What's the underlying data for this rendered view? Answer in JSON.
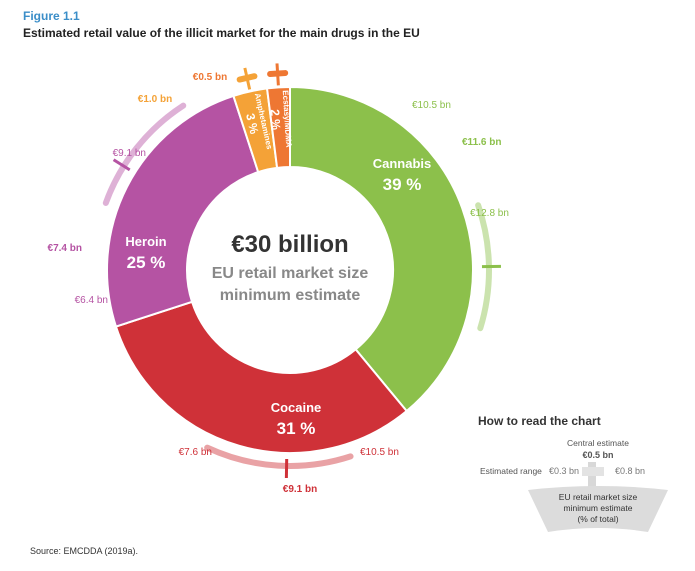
{
  "figure_label": "Figure 1.1",
  "title": "Estimated retail value of the illicit market for the main drugs in the EU",
  "source": "Source: EMCDDA (2019a).",
  "center": {
    "line1": "€30 billion",
    "line2": "EU retail market size",
    "line3": "minimum estimate"
  },
  "colors": {
    "cannabis": "#8cc04b",
    "cocaine": "#cf3138",
    "heroin": "#b553a3",
    "amphetamines": "#f4a237",
    "ecstasy": "#ee7733"
  },
  "how_to_read": {
    "title": "How to read the chart",
    "central_label": "Central estimate",
    "central_value": "€0.5 bn",
    "range_label": "Estimated range",
    "range_low": "€0.3 bn",
    "range_high": "€0.8 bn",
    "box_line1": "EU retail market size",
    "box_line2": "minimum estimate",
    "box_line3": "(% of total)"
  },
  "chart_data": {
    "type": "pie",
    "title": "Estimated retail value of the illicit market for the main drugs in the EU",
    "total_label": "€30 billion",
    "slices": [
      {
        "name": "Cannabis",
        "percent": 39,
        "percent_label": "39 %",
        "central": "€11.6 bn",
        "low": "€10.5 bn",
        "high": "€12.8 bn",
        "central_value": 11.6,
        "low_value": 10.5,
        "high_value": 12.8
      },
      {
        "name": "Cocaine",
        "percent": 31,
        "percent_label": "31 %",
        "central": "€9.1 bn",
        "low": "€7.6 bn",
        "high": "€10.5 bn",
        "central_value": 9.1,
        "low_value": 7.6,
        "high_value": 10.5
      },
      {
        "name": "Heroin",
        "percent": 25,
        "percent_label": "25 %",
        "central": "€7.4 bn",
        "low": "€6.4 bn",
        "high": "€9.1 bn",
        "central_value": 7.4,
        "low_value": 6.4,
        "high_value": 9.1
      },
      {
        "name": "Amphetamines",
        "percent": 3,
        "percent_label": "3 %",
        "central": "€1.0 bn",
        "central_value": 1.0
      },
      {
        "name": "Ecstasy/MDMA",
        "percent": 2,
        "percent_label": "2 %",
        "central": "€0.5 bn",
        "central_value": 0.5
      }
    ]
  }
}
